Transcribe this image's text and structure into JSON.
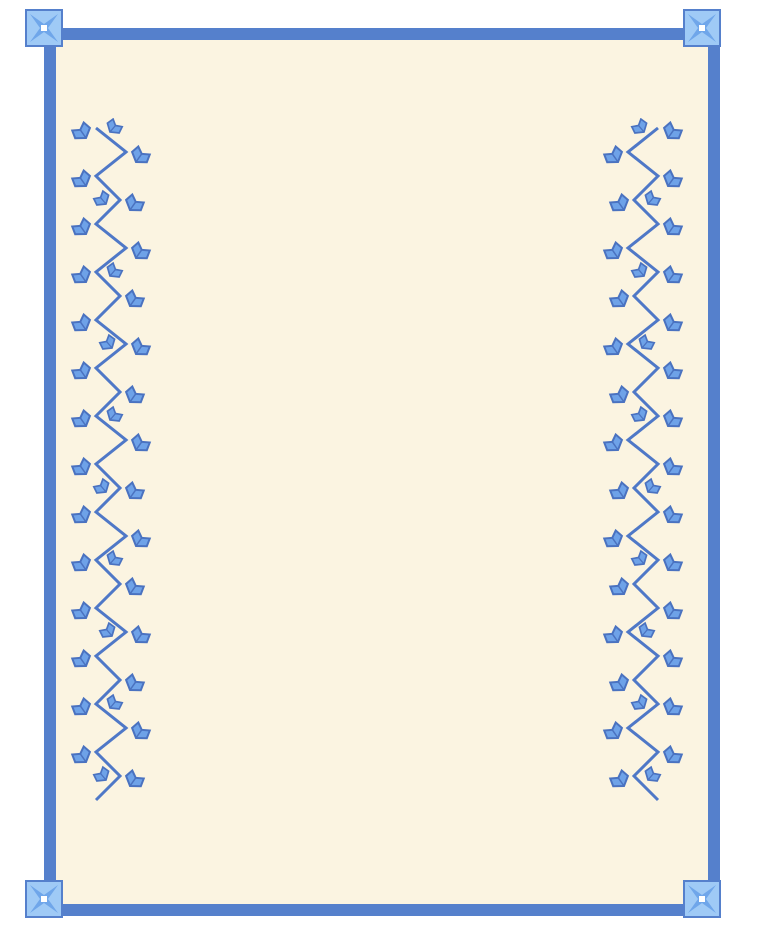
{
  "panel": {
    "background_color": "#fbf4e1",
    "border_color": "#5580cc"
  },
  "ornament": {
    "corner_icon": "four-point-star-corner-icon",
    "corner_colors": {
      "fill": "#9fcaf6",
      "outline": "#5580cc",
      "highlight": "#ffffff"
    },
    "vine_icon": "ivy-vine-icon",
    "vine_colors": {
      "stem": "#4f78c7",
      "leaf": "#6ea2e8",
      "leaf_dark": "#4a72c0"
    }
  }
}
